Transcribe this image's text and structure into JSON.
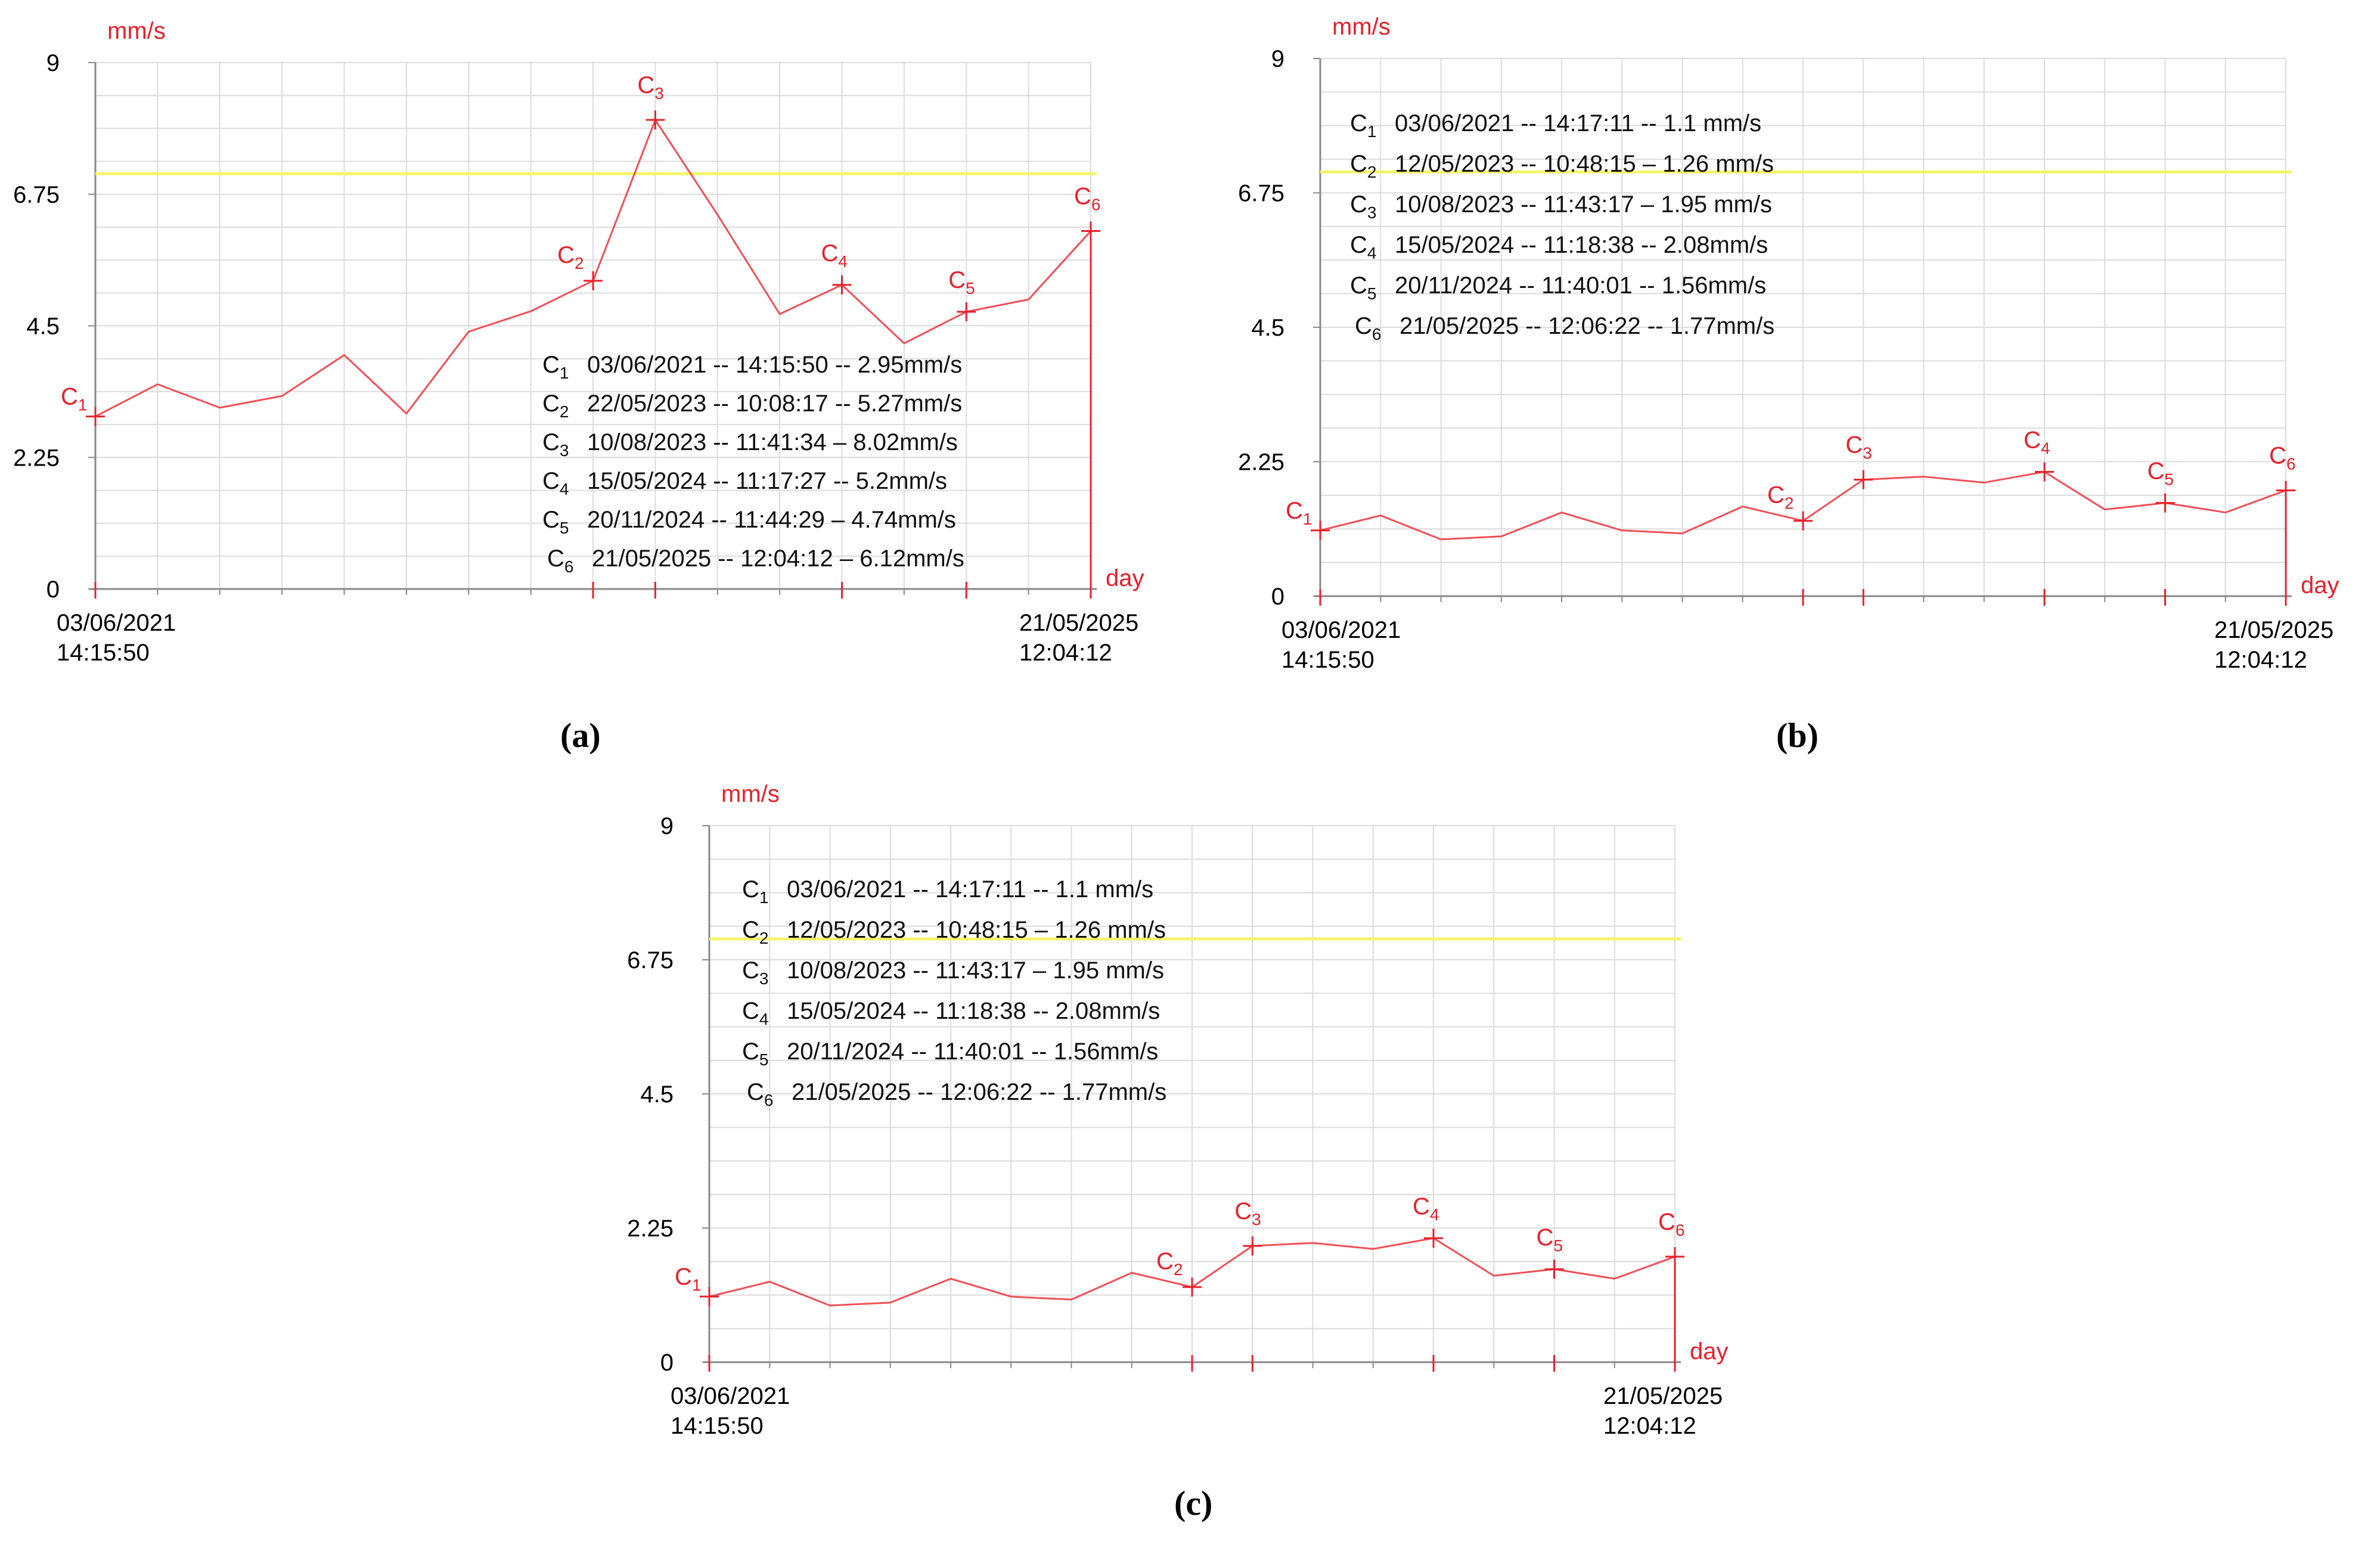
{
  "chart_data": [
    {
      "id": "a",
      "type": "line",
      "panel_label": "(a)",
      "ylabel": "mm/s",
      "xlabel": "day",
      "ylim": [
        0,
        9
      ],
      "yticks": [
        "0",
        "2.25",
        "4.5",
        "6.75",
        "9"
      ],
      "threshold": 7.1,
      "x_start_label": [
        "03/06/2021",
        "14:15:50"
      ],
      "x_end_label": [
        "21/05/2025",
        "12:04:12"
      ],
      "values": [
        2.95,
        3.5,
        3.1,
        3.3,
        4.0,
        3.0,
        4.4,
        4.75,
        5.27,
        8.02,
        6.4,
        4.7,
        5.2,
        4.2,
        4.74,
        4.95,
        6.12
      ],
      "checkpoints": [
        {
          "name": "C",
          "sub": "1",
          "index": 0,
          "text": "03/06/2021 -- 14:15:50 -- 2.95mm/s"
        },
        {
          "name": "C",
          "sub": "2",
          "index": 8,
          "text": "22/05/2023 -- 10:08:17 -- 5.27mm/s"
        },
        {
          "name": "C",
          "sub": "3",
          "index": 9,
          "text": "10/08/2023 -- 11:41:34 – 8.02mm/s"
        },
        {
          "name": "C",
          "sub": "4",
          "index": 12,
          "text": "15/05/2024 -- 11:17:27 -- 5.2mm/s"
        },
        {
          "name": "C",
          "sub": "5",
          "index": 14,
          "text": "20/11/2024 -- 11:44:29 – 4.74mm/s"
        },
        {
          "name": "C",
          "sub": "6",
          "index": 16,
          "text": "21/05/2025 -- 12:04:12 – 6.12mm/s"
        }
      ]
    },
    {
      "id": "b",
      "type": "line",
      "panel_label": "(b)",
      "ylabel": "mm/s",
      "xlabel": "day",
      "ylim": [
        0,
        9
      ],
      "yticks": [
        "0",
        "2.25",
        "4.5",
        "6.75",
        "9"
      ],
      "threshold": 7.1,
      "x_start_label": [
        "03/06/2021",
        "14:15:50"
      ],
      "x_end_label": [
        "21/05/2025",
        "12:04:12"
      ],
      "values": [
        1.1,
        1.35,
        0.95,
        1.0,
        1.4,
        1.1,
        1.05,
        1.5,
        1.26,
        1.95,
        2.0,
        1.9,
        2.08,
        1.45,
        1.56,
        1.4,
        1.77
      ],
      "checkpoints": [
        {
          "name": "C",
          "sub": "1",
          "index": 0,
          "text": "03/06/2021 -- 14:17:11 -- 1.1 mm/s"
        },
        {
          "name": "C",
          "sub": "2",
          "index": 8,
          "text": "12/05/2023 -- 10:48:15 – 1.26 mm/s"
        },
        {
          "name": "C",
          "sub": "3",
          "index": 9,
          "text": "10/08/2023 -- 11:43:17 – 1.95 mm/s"
        },
        {
          "name": "C",
          "sub": "4",
          "index": 12,
          "text": "15/05/2024 -- 11:18:38 -- 2.08mm/s"
        },
        {
          "name": "C",
          "sub": "5",
          "index": 14,
          "text": "20/11/2024 -- 11:40:01 -- 1.56mm/s"
        },
        {
          "name": "C",
          "sub": "6",
          "index": 16,
          "text": "21/05/2025 -- 12:06:22 -- 1.77mm/s"
        }
      ]
    },
    {
      "id": "c",
      "type": "line",
      "panel_label": "(c)",
      "ylabel": "mm/s",
      "xlabel": "day",
      "ylim": [
        0,
        9
      ],
      "yticks": [
        "0",
        "2.25",
        "4.5",
        "6.75",
        "9"
      ],
      "threshold": 7.1,
      "x_start_label": [
        "03/06/2021",
        "14:15:50"
      ],
      "x_end_label": [
        "21/05/2025",
        "12:04:12"
      ],
      "values": [
        1.1,
        1.35,
        0.95,
        1.0,
        1.4,
        1.1,
        1.05,
        1.5,
        1.26,
        1.95,
        2.0,
        1.9,
        2.08,
        1.45,
        1.56,
        1.4,
        1.77
      ],
      "checkpoints": [
        {
          "name": "C",
          "sub": "1",
          "index": 0,
          "text": "03/06/2021 -- 14:17:11 -- 1.1 mm/s"
        },
        {
          "name": "C",
          "sub": "2",
          "index": 8,
          "text": "12/05/2023 -- 10:48:15 – 1.26 mm/s"
        },
        {
          "name": "C",
          "sub": "3",
          "index": 9,
          "text": "10/08/2023 -- 11:43:17 – 1.95 mm/s"
        },
        {
          "name": "C",
          "sub": "4",
          "index": 12,
          "text": "15/05/2024 -- 11:18:38 -- 2.08mm/s"
        },
        {
          "name": "C",
          "sub": "5",
          "index": 14,
          "text": "20/11/2024 -- 11:40:01 -- 1.56mm/s"
        },
        {
          "name": "C",
          "sub": "6",
          "index": 16,
          "text": "21/05/2025 -- 12:06:22 -- 1.77mm/s"
        }
      ]
    }
  ]
}
